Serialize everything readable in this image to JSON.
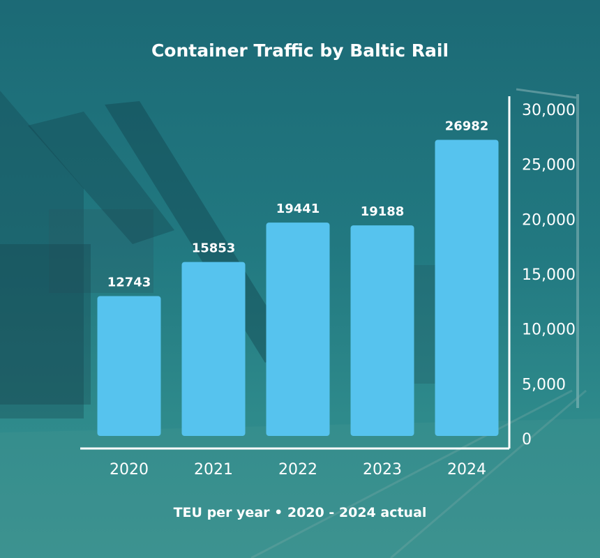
{
  "chart_data": {
    "type": "bar",
    "title": "Container Traffic by Baltic Rail",
    "subtitle": "TEU per year • 2020 - 2024 actual",
    "categories": [
      "2020",
      "2021",
      "2022",
      "2023",
      "2024"
    ],
    "values": [
      12743,
      15853,
      19441,
      19188,
      26982
    ],
    "data_labels": [
      "12743",
      "15853",
      "19441",
      "19188",
      "26982"
    ],
    "ylim": [
      0,
      30000
    ],
    "y_ticks": [
      0,
      5000,
      10000,
      15000,
      20000,
      25000,
      30000
    ],
    "y_tick_labels": [
      "0",
      "5,000",
      "10,000",
      "15,000",
      "20,000",
      "25,000",
      "30,000"
    ],
    "y_axis_side": "right",
    "grid": false,
    "bar_color": "#56c3ee"
  }
}
